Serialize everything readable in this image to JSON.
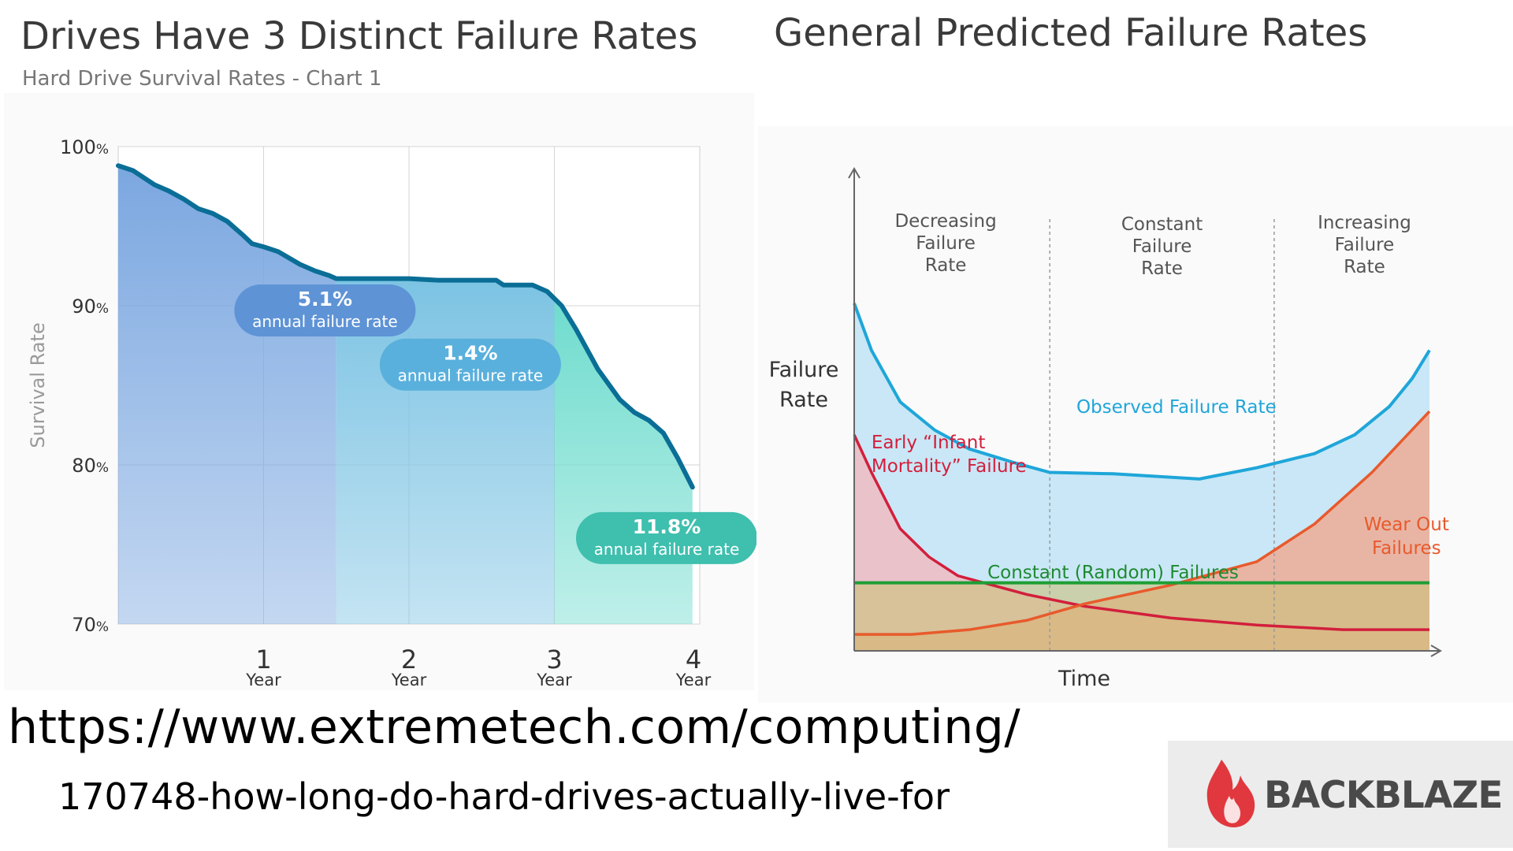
{
  "url": {
    "line1": "https://www.extremetech.com/computing/",
    "line2": "170748-how-long-do-hard-drives-actually-live-for"
  },
  "logo": {
    "text": "BACKBLAZE",
    "icon": "flame-icon",
    "color": "#e0383e"
  },
  "chart_data": [
    {
      "type": "area",
      "title": "Drives Have 3 Distinct Failure Rates",
      "subtitle": "Hard Drive Survival Rates - Chart 1",
      "ylabel": "Survival Rate",
      "ylim": [
        70,
        100
      ],
      "xlim": [
        0,
        4
      ],
      "y_ticks": [
        {
          "value": 100,
          "num": "100",
          "unit": "%"
        },
        {
          "value": 90,
          "num": "90",
          "unit": "%"
        },
        {
          "value": 80,
          "num": "80",
          "unit": "%"
        },
        {
          "value": 70,
          "num": "70",
          "unit": "%"
        }
      ],
      "x_ticks": [
        {
          "value": 1,
          "num": "1",
          "unit": "Year"
        },
        {
          "value": 2,
          "num": "2",
          "unit": "Year"
        },
        {
          "value": 3,
          "num": "3",
          "unit": "Year"
        },
        {
          "value": 4,
          "num": "4",
          "unit": "Year"
        }
      ],
      "grid": true,
      "series": [
        {
          "x": [
            0,
            0.1,
            0.25,
            0.35,
            0.45,
            0.55,
            0.65,
            0.75,
            0.85,
            0.92,
            1.0,
            1.1,
            1.25,
            1.35,
            1.45,
            1.5,
            1.65,
            1.8,
            2.0,
            2.2,
            2.4,
            2.6,
            2.65,
            2.85,
            2.95,
            3.05,
            3.15,
            3.3,
            3.45,
            3.55,
            3.65,
            3.75,
            3.85,
            3.95
          ],
          "y": [
            98.8,
            98.5,
            97.6,
            97.2,
            96.7,
            96.1,
            95.8,
            95.3,
            94.5,
            93.9,
            93.7,
            93.4,
            92.6,
            92.2,
            91.9,
            91.7,
            91.7,
            91.7,
            91.7,
            91.6,
            91.6,
            91.6,
            91.3,
            91.3,
            90.9,
            90.0,
            88.5,
            86.0,
            84.1,
            83.3,
            82.8,
            82.0,
            80.4,
            78.6
          ]
        }
      ],
      "regions": [
        {
          "from": 0,
          "to": 1.5,
          "color": "#7ba7e0",
          "value": "5.1%",
          "label": "annual failure rate",
          "badge_color": "#5e93d6"
        },
        {
          "from": 1.5,
          "to": 3.0,
          "color": "#7cc3e3",
          "value": "1.4%",
          "label": "annual failure rate",
          "badge_color": "#5ab0dc"
        },
        {
          "from": 3.0,
          "to": 4.0,
          "color": "#6fdcce",
          "value": "11.8%",
          "label": "annual failure rate",
          "badge_color": "#3fbfae"
        }
      ],
      "line_color": "#0a6e96"
    },
    {
      "type": "line",
      "title": "General Predicted Failure Rates",
      "ylabel": "Failure Rate",
      "xlabel": "Time",
      "xlim": [
        0,
        100
      ],
      "ylim": [
        0,
        100
      ],
      "phases": [
        {
          "label": "Decreasing Failure Rate",
          "lines": [
            "Decreasing",
            "Failure",
            "Rate"
          ],
          "from": 0,
          "to": 34
        },
        {
          "label": "Constant Failure Rate",
          "lines": [
            "Constant",
            "Failure",
            "Rate"
          ],
          "from": 34,
          "to": 73
        },
        {
          "label": "Increasing Failure Rate",
          "lines": [
            "Increasing",
            "Failure",
            "Rate"
          ],
          "from": 73,
          "to": 100
        }
      ],
      "series": [
        {
          "name": "Observed Failure Rate",
          "color": "#1fa6d9",
          "x": [
            0,
            3,
            8,
            14,
            20,
            28,
            34,
            45,
            60,
            70,
            80,
            87,
            93,
            97,
            100
          ],
          "y": [
            74,
            64,
            53,
            47,
            43,
            40,
            38,
            37.7,
            36.6,
            39,
            42,
            46,
            52,
            58,
            64
          ]
        },
        {
          "name": "Early “Infant Mortality” Failure",
          "lines": [
            "Early “Infant",
            "Mortality” Failure"
          ],
          "color": "#d21f3c",
          "x": [
            0,
            3,
            8,
            13,
            18,
            24,
            30,
            40,
            55,
            70,
            85,
            100
          ],
          "y": [
            46,
            38,
            26,
            20,
            16,
            14,
            12,
            9.5,
            7,
            5.5,
            4.5,
            4.5
          ]
        },
        {
          "name": "Constant (Random) Failures",
          "color": "#1e9e35",
          "x": [
            0,
            100
          ],
          "y": [
            14.5,
            14.5
          ]
        },
        {
          "name": "Wear Out Failures",
          "lines": [
            "Wear Out",
            "Failures"
          ],
          "color": "#e85a2c",
          "x": [
            0,
            10,
            20,
            30,
            40,
            55,
            70,
            80,
            90,
            100
          ],
          "y": [
            3.5,
            3.5,
            4.5,
            6.5,
            10,
            14,
            19,
            27,
            38,
            51
          ]
        }
      ]
    }
  ]
}
